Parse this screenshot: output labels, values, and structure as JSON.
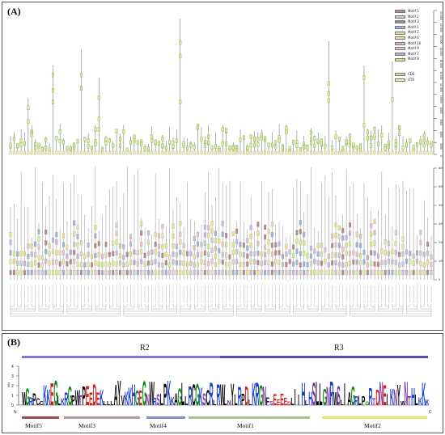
{
  "panel_a": {
    "label": "(A)",
    "legend": [
      {
        "name": "Motif 5",
        "color": "#b88a8a"
      },
      {
        "name": "Motif 2",
        "color": "#c9c9c9"
      },
      {
        "name": "Motif 3",
        "color": "#a98a8a"
      },
      {
        "name": "Motif 1",
        "color": "#9eb3d6"
      },
      {
        "name": "Motif 2",
        "color": "#d8e88c"
      },
      {
        "name": "Motif 6",
        "color": "#e3e3a8"
      },
      {
        "name": "Motif 10",
        "color": "#c7b6e0"
      },
      {
        "name": "Motif 9",
        "color": "#e8c4c4"
      },
      {
        "name": "Motif 7",
        "color": "#b7a6d1"
      },
      {
        "name": "Motif 8",
        "color": "#e6e08a"
      }
    ],
    "legend_gene": [
      {
        "name": "CDS",
        "color": "#c8e6a0"
      },
      {
        "name": "UTR",
        "color": "#f0f0a0"
      }
    ],
    "top_axis": [
      "0",
      "2000",
      "4000",
      "6000",
      "8000",
      "10000",
      "12,000",
      "14,000",
      "16,000",
      "18,000",
      "20,000",
      "22,000",
      "24,000"
    ],
    "bottom_axis": [
      "0",
      "100",
      "200",
      "300",
      "400",
      "500",
      "600"
    ],
    "genes": 120
  },
  "panel_b": {
    "label": "(B)",
    "regions": [
      "R2",
      "R3"
    ],
    "ylabel": "bits",
    "yticks": [
      "0",
      "1",
      "2",
      "3",
      "4"
    ],
    "n_label": "N",
    "c_label": "C",
    "motifs": [
      {
        "name": "Motif5",
        "color": "#9b4a4a"
      },
      {
        "name": "Motif3",
        "color": "#b89a9a"
      },
      {
        "name": "Motif4",
        "color": "#7a90c2"
      },
      {
        "name": "Motif1",
        "color": "#a8c48a"
      },
      {
        "name": "Motif2",
        "color": "#e2e870"
      }
    ],
    "logo_letters": [
      "W",
      "G",
      "R",
      "P",
      "C",
      "C",
      "K",
      "K",
      "E",
      "G",
      "L",
      "K",
      "R",
      "G",
      "P",
      "W",
      "T",
      "P",
      "E",
      "E",
      "D",
      "E",
      "K",
      "L",
      "L",
      "L",
      "A",
      "Y",
      "V",
      "K",
      "K",
      "H",
      "G",
      "E",
      "G",
      "N",
      "W",
      "R",
      "S",
      "L",
      "P",
      "K",
      "K",
      "A",
      "G",
      "L",
      "L",
      "R",
      "C",
      "G",
      "K",
      "S",
      "C",
      "R",
      "L",
      "R",
      "W",
      "L",
      "N",
      "Y",
      "L",
      "R",
      "P",
      "D",
      "L",
      "K",
      "R",
      "G",
      "N",
      "F",
      "S",
      "E",
      "E",
      "E",
      "E",
      "D",
      "L",
      "I",
      "I",
      "H",
      "L",
      "H",
      "S",
      "L",
      "L",
      "G",
      "N",
      "R",
      "W",
      "S",
      "L",
      "I",
      "A",
      "G",
      "R",
      "L",
      "P",
      "G",
      "R",
      "T",
      "D",
      "N",
      "E",
      "I",
      "K",
      "N",
      "Y",
      "W",
      "N",
      "T",
      "H",
      "L",
      "K",
      "K",
      "K"
    ]
  }
}
